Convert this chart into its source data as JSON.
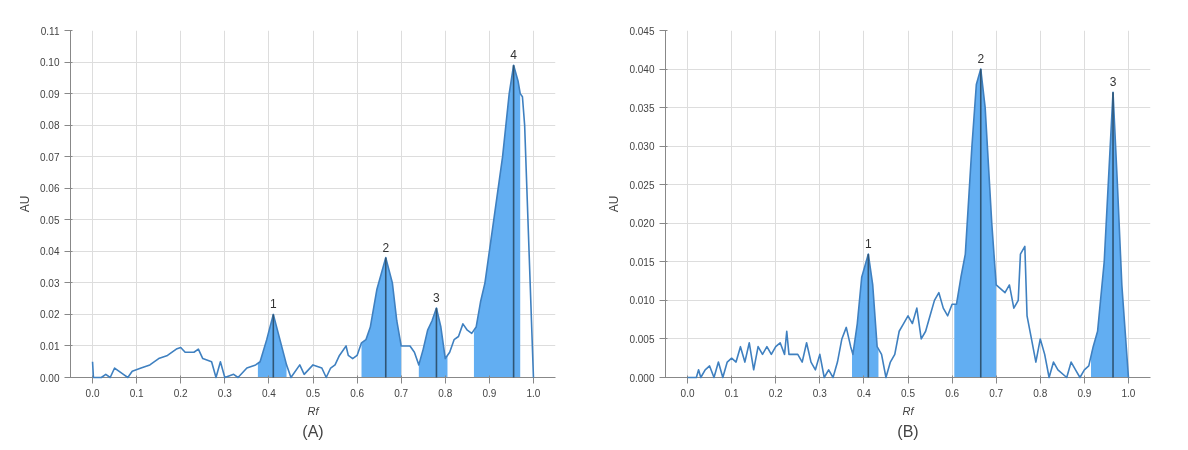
{
  "chart_data": [
    {
      "type": "line",
      "title": "(A)",
      "xlabel": "Rf",
      "ylabel": "AU",
      "xlim": [
        -0.05,
        1.05
      ],
      "ylim": [
        0,
        0.11
      ],
      "xticks": [
        {
          "value": 0,
          "label": "0.0"
        },
        {
          "value": 0.1,
          "label": "0.1"
        },
        {
          "value": 0.2,
          "label": "0.2"
        },
        {
          "value": 0.3,
          "label": "0.3"
        },
        {
          "value": 0.4,
          "label": "0.4"
        },
        {
          "value": 0.5,
          "label": "0.5"
        },
        {
          "value": 0.6,
          "label": "0.6"
        },
        {
          "value": 0.7,
          "label": "0.7"
        },
        {
          "value": 0.8,
          "label": "0.8"
        },
        {
          "value": 0.9,
          "label": "0.9"
        },
        {
          "value": 1.0,
          "label": "1.0"
        }
      ],
      "yticks": [
        {
          "value": 0,
          "label": "0.00"
        },
        {
          "value": 0.01,
          "label": "0.01"
        },
        {
          "value": 0.02,
          "label": "0.02"
        },
        {
          "value": 0.03,
          "label": "0.03"
        },
        {
          "value": 0.04,
          "label": "0.04"
        },
        {
          "value": 0.05,
          "label": "0.05"
        },
        {
          "value": 0.06,
          "label": "0.06"
        },
        {
          "value": 0.07,
          "label": "0.07"
        },
        {
          "value": 0.08,
          "label": "0.08"
        },
        {
          "value": 0.09,
          "label": "0.09"
        },
        {
          "value": 0.1,
          "label": "0.10"
        },
        {
          "value": 0.11,
          "label": "0.11"
        }
      ],
      "grid": true,
      "marker": "none",
      "series": [
        {
          "type": "area",
          "color": "#62aef2",
          "x": [
            0.375,
            0.38,
            0.395,
            0.41,
            0.425,
            0.44
          ],
          "values": [
            0.0045,
            0.005,
            0.012,
            0.02,
            0.012,
            0.004
          ]
        },
        {
          "type": "area",
          "color": "#62aef2",
          "x": [
            0.61,
            0.62,
            0.63,
            0.645,
            0.665,
            0.68,
            0.69,
            0.7
          ],
          "values": [
            0.011,
            0.012,
            0.016,
            0.028,
            0.038,
            0.03,
            0.018,
            0.01
          ]
        },
        {
          "type": "area",
          "color": "#62aef2",
          "x": [
            0.74,
            0.75,
            0.76,
            0.77,
            0.78,
            0.79,
            0.8,
            0.805
          ],
          "values": [
            0.004,
            0.009,
            0.015,
            0.018,
            0.022,
            0.016,
            0.006,
            0.007
          ]
        },
        {
          "type": "area",
          "color": "#62aef2",
          "x": [
            0.865,
            0.87,
            0.88,
            0.89,
            0.91,
            0.93,
            0.945,
            0.955,
            0.965,
            0.97
          ],
          "values": [
            0.0145,
            0.016,
            0.024,
            0.03,
            0.05,
            0.07,
            0.09,
            0.099,
            0.094,
            0.09
          ]
        },
        {
          "color": "#3f80c0",
          "x": [
            0.0,
            0.002,
            0.02,
            0.03,
            0.04,
            0.05,
            0.07,
            0.08,
            0.09,
            0.11,
            0.13,
            0.15,
            0.17,
            0.19,
            0.2,
            0.21,
            0.23,
            0.24,
            0.25,
            0.27,
            0.28,
            0.29,
            0.3,
            0.32,
            0.33,
            0.35,
            0.37,
            0.38,
            0.395,
            0.41,
            0.425,
            0.44,
            0.45,
            0.47,
            0.48,
            0.5,
            0.52,
            0.53,
            0.54,
            0.55,
            0.56,
            0.575,
            0.58,
            0.59,
            0.6,
            0.61,
            0.62,
            0.63,
            0.645,
            0.665,
            0.68,
            0.69,
            0.7,
            0.72,
            0.73,
            0.74,
            0.75,
            0.76,
            0.77,
            0.78,
            0.79,
            0.8,
            0.81,
            0.82,
            0.83,
            0.84,
            0.85,
            0.86,
            0.87,
            0.88,
            0.89,
            0.91,
            0.93,
            0.945,
            0.955,
            0.965,
            0.97,
            0.975,
            0.98,
            0.99,
            1.0
          ],
          "values": [
            0.005,
            0.0,
            0.0,
            0.001,
            0.0,
            0.003,
            0.001,
            0.0,
            0.002,
            0.003,
            0.004,
            0.006,
            0.007,
            0.009,
            0.0095,
            0.008,
            0.008,
            0.009,
            0.006,
            0.005,
            0.0,
            0.005,
            0.0,
            0.001,
            0.0,
            0.003,
            0.004,
            0.005,
            0.012,
            0.02,
            0.012,
            0.004,
            0.0,
            0.004,
            0.001,
            0.004,
            0.003,
            0.0,
            0.003,
            0.004,
            0.007,
            0.01,
            0.007,
            0.006,
            0.007,
            0.011,
            0.012,
            0.016,
            0.028,
            0.038,
            0.03,
            0.018,
            0.01,
            0.01,
            0.008,
            0.004,
            0.009,
            0.015,
            0.018,
            0.022,
            0.016,
            0.006,
            0.008,
            0.012,
            0.013,
            0.017,
            0.015,
            0.014,
            0.016,
            0.024,
            0.03,
            0.05,
            0.07,
            0.09,
            0.099,
            0.094,
            0.09,
            0.089,
            0.08,
            0.04,
            0.0
          ]
        },
        {
          "type": "line",
          "color": "#2f5575",
          "x": [
            0.41,
            0.41
          ],
          "values": [
            0,
            0.02
          ]
        },
        {
          "type": "line",
          "color": "#2f5575",
          "x": [
            0.665,
            0.665
          ],
          "values": [
            0,
            0.038
          ]
        },
        {
          "type": "line",
          "color": "#2f5575",
          "x": [
            0.78,
            0.78
          ],
          "values": [
            0,
            0.022
          ]
        },
        {
          "type": "line",
          "color": "#2f5575",
          "x": [
            0.955,
            0.955
          ],
          "values": [
            0,
            0.099
          ]
        }
      ],
      "annotations": [
        {
          "text": "1",
          "x": 0.41,
          "y": 0.02
        },
        {
          "text": "2",
          "x": 0.665,
          "y": 0.038
        },
        {
          "text": "3",
          "x": 0.78,
          "y": 0.022
        },
        {
          "text": "4",
          "x": 0.955,
          "y": 0.099
        }
      ]
    },
    {
      "type": "line",
      "title": "(B)",
      "xlabel": "Rf",
      "ylabel": "AU",
      "xlim": [
        -0.05,
        1.05
      ],
      "ylim": [
        0,
        0.045
      ],
      "xticks": [
        {
          "value": 0,
          "label": "0.0"
        },
        {
          "value": 0.1,
          "label": "0.1"
        },
        {
          "value": 0.2,
          "label": "0.2"
        },
        {
          "value": 0.3,
          "label": "0.3"
        },
        {
          "value": 0.4,
          "label": "0.4"
        },
        {
          "value": 0.5,
          "label": "0.5"
        },
        {
          "value": 0.6,
          "label": "0.6"
        },
        {
          "value": 0.7,
          "label": "0.7"
        },
        {
          "value": 0.8,
          "label": "0.8"
        },
        {
          "value": 0.9,
          "label": "0.9"
        },
        {
          "value": 1.0,
          "label": "1.0"
        }
      ],
      "yticks": [
        {
          "value": 0,
          "label": "0.000"
        },
        {
          "value": 0.005,
          "label": "0.005"
        },
        {
          "value": 0.01,
          "label": "0.010"
        },
        {
          "value": 0.015,
          "label": "0.015"
        },
        {
          "value": 0.02,
          "label": "0.020"
        },
        {
          "value": 0.025,
          "label": "0.025"
        },
        {
          "value": 0.03,
          "label": "0.030"
        },
        {
          "value": 0.035,
          "label": "0.035"
        },
        {
          "value": 0.04,
          "label": "0.040"
        },
        {
          "value": 0.045,
          "label": "0.045"
        }
      ],
      "grid": true,
      "marker": "none",
      "series": [
        {
          "type": "area",
          "color": "#62aef2",
          "x": [
            0.373,
            0.375,
            0.385,
            0.395,
            0.41,
            0.42,
            0.43,
            0.433
          ],
          "values": [
            0.0035,
            0.003,
            0.007,
            0.013,
            0.016,
            0.012,
            0.004,
            0.0035
          ]
        },
        {
          "type": "area",
          "color": "#62aef2",
          "x": [
            0.605,
            0.61,
            0.62,
            0.63,
            0.645,
            0.655,
            0.665,
            0.675,
            0.69,
            0.7
          ],
          "values": [
            0.0095,
            0.0095,
            0.013,
            0.016,
            0.03,
            0.038,
            0.04,
            0.035,
            0.02,
            0.012
          ]
        },
        {
          "type": "area",
          "color": "#62aef2",
          "x": [
            0.915,
            0.92,
            0.93,
            0.945,
            0.965,
            0.975,
            0.985,
            1.0
          ],
          "values": [
            0.003,
            0.004,
            0.006,
            0.015,
            0.037,
            0.025,
            0.012,
            0.0
          ]
        },
        {
          "color": "#3f80c0",
          "x": [
            0.0,
            0.02,
            0.025,
            0.03,
            0.04,
            0.05,
            0.06,
            0.07,
            0.08,
            0.09,
            0.1,
            0.11,
            0.12,
            0.13,
            0.14,
            0.15,
            0.16,
            0.17,
            0.18,
            0.19,
            0.2,
            0.21,
            0.22,
            0.225,
            0.23,
            0.25,
            0.26,
            0.27,
            0.28,
            0.29,
            0.3,
            0.31,
            0.32,
            0.33,
            0.34,
            0.35,
            0.36,
            0.37,
            0.375,
            0.385,
            0.395,
            0.41,
            0.42,
            0.43,
            0.44,
            0.45,
            0.46,
            0.47,
            0.48,
            0.49,
            0.5,
            0.51,
            0.52,
            0.53,
            0.54,
            0.55,
            0.56,
            0.57,
            0.58,
            0.59,
            0.6,
            0.61,
            0.62,
            0.63,
            0.645,
            0.655,
            0.665,
            0.675,
            0.69,
            0.7,
            0.72,
            0.73,
            0.74,
            0.75,
            0.755,
            0.765,
            0.77,
            0.78,
            0.79,
            0.8,
            0.81,
            0.82,
            0.83,
            0.84,
            0.86,
            0.87,
            0.88,
            0.89,
            0.9,
            0.91,
            0.92,
            0.93,
            0.945,
            0.965,
            0.975,
            0.985,
            1.0
          ],
          "values": [
            0.0,
            0.0,
            0.001,
            0.0,
            0.001,
            0.0015,
            0.0,
            0.002,
            0.0,
            0.002,
            0.0025,
            0.002,
            0.004,
            0.002,
            0.0045,
            0.001,
            0.004,
            0.003,
            0.004,
            0.003,
            0.004,
            0.0045,
            0.003,
            0.006,
            0.003,
            0.003,
            0.002,
            0.0045,
            0.002,
            0.001,
            0.003,
            0.0,
            0.001,
            0.0,
            0.002,
            0.005,
            0.0065,
            0.004,
            0.003,
            0.007,
            0.013,
            0.016,
            0.012,
            0.004,
            0.003,
            0.0,
            0.002,
            0.003,
            0.006,
            0.007,
            0.008,
            0.007,
            0.009,
            0.005,
            0.006,
            0.008,
            0.01,
            0.011,
            0.009,
            0.008,
            0.0095,
            0.0095,
            0.013,
            0.016,
            0.03,
            0.038,
            0.04,
            0.035,
            0.02,
            0.012,
            0.011,
            0.012,
            0.009,
            0.01,
            0.016,
            0.017,
            0.008,
            0.005,
            0.002,
            0.005,
            0.003,
            0.0,
            0.002,
            0.001,
            0.0,
            0.002,
            0.001,
            0.0,
            0.001,
            0.0015,
            0.004,
            0.006,
            0.015,
            0.037,
            0.025,
            0.012,
            0.0
          ]
        },
        {
          "type": "line",
          "color": "#2f5575",
          "x": [
            0.41,
            0.41
          ],
          "values": [
            0,
            0.016
          ]
        },
        {
          "type": "line",
          "color": "#2f5575",
          "x": [
            0.665,
            0.665
          ],
          "values": [
            0,
            0.04
          ]
        },
        {
          "type": "line",
          "color": "#2f5575",
          "x": [
            0.965,
            0.965
          ],
          "values": [
            0,
            0.037
          ]
        }
      ],
      "annotations": [
        {
          "text": "1",
          "x": 0.41,
          "y": 0.016
        },
        {
          "text": "2",
          "x": 0.665,
          "y": 0.04
        },
        {
          "text": "3",
          "x": 0.965,
          "y": 0.037
        }
      ]
    }
  ]
}
